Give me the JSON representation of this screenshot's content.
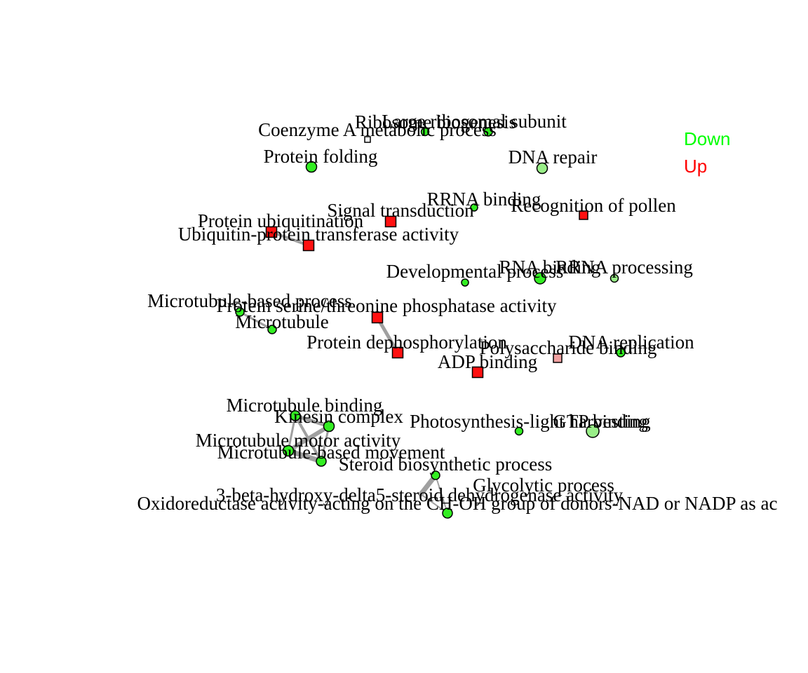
{
  "legend": {
    "down_label": "Down",
    "up_label": "Up",
    "down_color": "#00ff00",
    "up_color": "#ff0000"
  },
  "colors": {
    "down": "#33ee22",
    "down_light": "#99ee88",
    "up": "#ff1111",
    "up_light": "#f0a0a0",
    "none": "#ffffff",
    "edge": "#a0a0a0"
  },
  "nodes": [
    {
      "id": "coa",
      "label": "Coenzyme A metabolic process",
      "shape": "square",
      "color": "none"
    },
    {
      "id": "ribo",
      "label": "Ribosome biogenesis",
      "shape": "circle",
      "color": "down"
    },
    {
      "id": "large",
      "label": "Large ribosomal subunit",
      "shape": "circle",
      "color": "down"
    },
    {
      "id": "folding",
      "label": "Protein folding",
      "shape": "circle",
      "color": "down"
    },
    {
      "id": "dnarepair",
      "label": "DNA repair",
      "shape": "circle",
      "color": "down_light"
    },
    {
      "id": "rrna",
      "label": "RRNA binding",
      "shape": "circle",
      "color": "down"
    },
    {
      "id": "pollen",
      "label": "Recognition of pollen",
      "shape": "square",
      "color": "up"
    },
    {
      "id": "signal",
      "label": "Signal transduction",
      "shape": "square",
      "color": "up"
    },
    {
      "id": "ubiq",
      "label": "Protein ubiquitination",
      "shape": "square",
      "color": "up"
    },
    {
      "id": "ubiqtrans",
      "label": "Ubiquitin-protein transferase activity",
      "shape": "square",
      "color": "up"
    },
    {
      "id": "devel",
      "label": "Developmental process",
      "shape": "circle",
      "color": "down"
    },
    {
      "id": "rnabind",
      "label": "RNA binding",
      "shape": "circle",
      "color": "down"
    },
    {
      "id": "rrnaproc",
      "label": "RRNA processing",
      "shape": "circle",
      "color": "down_light"
    },
    {
      "id": "mtproc",
      "label": "Microtubule-based process",
      "shape": "circle",
      "color": "down"
    },
    {
      "id": "ppase",
      "label": "Protein serine/threonine phosphatase activity",
      "shape": "square",
      "color": "up"
    },
    {
      "id": "mt",
      "label": "Microtubule",
      "shape": "circle",
      "color": "down"
    },
    {
      "id": "dephos",
      "label": "Protein dephosphorylation",
      "shape": "square",
      "color": "up"
    },
    {
      "id": "dnarep",
      "label": "DNA replication",
      "shape": "circle",
      "color": "down"
    },
    {
      "id": "polysac",
      "label": "Polysaccharide binding",
      "shape": "square",
      "color": "up_light"
    },
    {
      "id": "adp",
      "label": "ADP binding",
      "shape": "square",
      "color": "up"
    },
    {
      "id": "mtbind",
      "label": "Microtubule binding",
      "shape": "circle",
      "color": "down"
    },
    {
      "id": "kinesin",
      "label": "Kinesin complex",
      "shape": "circle",
      "color": "down"
    },
    {
      "id": "photo",
      "label": "Photosynthesis-light harvesting",
      "shape": "circle",
      "color": "down"
    },
    {
      "id": "gtp",
      "label": "GTP binding",
      "shape": "circle",
      "color": "down_light"
    },
    {
      "id": "motor",
      "label": "Microtubule motor activity",
      "shape": "circle",
      "color": "down"
    },
    {
      "id": "mtmove",
      "label": "Microtubule-based movement",
      "shape": "circle",
      "color": "down"
    },
    {
      "id": "steroid",
      "label": "Steroid biosynthetic process",
      "shape": "circle",
      "color": "down"
    },
    {
      "id": "glyco",
      "label": "Glycolytic process",
      "shape": "circle",
      "color": "down"
    },
    {
      "id": "hsd",
      "label": "3-beta-hydroxy-delta5-steroid dehydrogenase activity",
      "shape": "circle",
      "color": "down"
    },
    {
      "id": "oxido",
      "label": "Oxidoreductase activity-acting on the CH-OH group of donors-NAD or NADP as ac",
      "shape": "circle",
      "color": "down"
    }
  ],
  "edges": [
    {
      "from": "ubiq",
      "to": "ubiqtrans"
    },
    {
      "from": "mtproc",
      "to": "mt"
    },
    {
      "from": "ppase",
      "to": "dephos"
    },
    {
      "from": "mtbind",
      "to": "kinesin"
    },
    {
      "from": "mtbind",
      "to": "motor"
    },
    {
      "from": "mtbind",
      "to": "mtmove"
    },
    {
      "from": "kinesin",
      "to": "motor"
    },
    {
      "from": "kinesin",
      "to": "mtmove"
    },
    {
      "from": "motor",
      "to": "mtmove"
    },
    {
      "from": "steroid",
      "to": "hsd"
    },
    {
      "from": "steroid",
      "to": "oxido"
    },
    {
      "from": "hsd",
      "to": "oxido"
    }
  ]
}
